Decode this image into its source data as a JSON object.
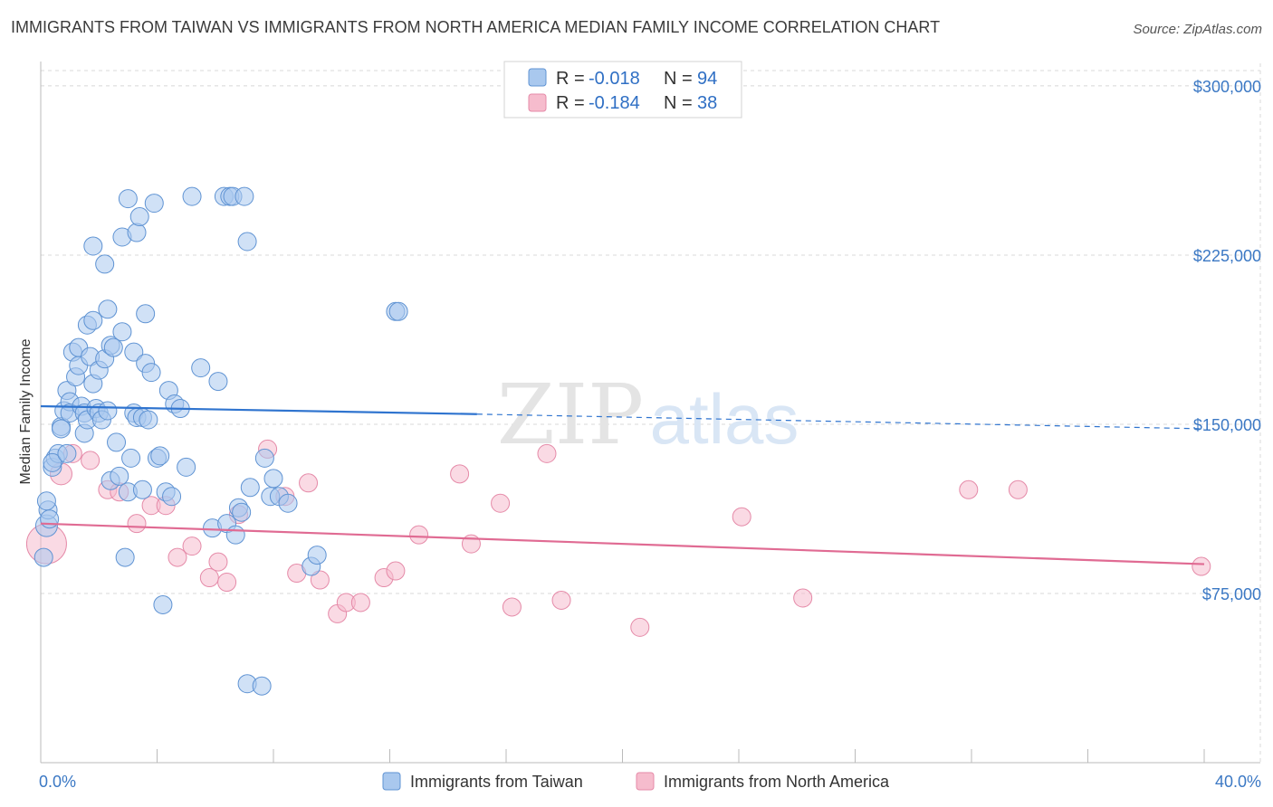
{
  "title": "IMMIGRANTS FROM TAIWAN VS IMMIGRANTS FROM NORTH AMERICA MEDIAN FAMILY INCOME CORRELATION CHART",
  "source": "Source: ZipAtlas.com",
  "watermark": {
    "zip": "ZIP",
    "atlas": "atlas"
  },
  "colors": {
    "taiwan_fill": "#a9c8ee",
    "taiwan_stroke": "#5f93d3",
    "taiwan_line": "#2f74cf",
    "na_fill": "#f6bccd",
    "na_stroke": "#e58aa8",
    "na_line": "#e06b93",
    "tick_text": "#3b78c4",
    "grid": "#d8d8d8"
  },
  "legend_top": [
    {
      "series": "taiwan",
      "r_label": "R = ",
      "r_value": "-0.018",
      "n_label": "N = ",
      "n_value": "94"
    },
    {
      "series": "na",
      "r_label": "R = ",
      "r_value": "-0.184",
      "n_label": "N = ",
      "n_value": "38"
    }
  ],
  "chart_data": {
    "type": "scatter",
    "xlabel": "",
    "ylabel": "Median Family Income",
    "xlim": [
      0,
      40
    ],
    "ylim": [
      0,
      310000
    ],
    "x_tick_labels": [
      {
        "value": 0,
        "label": "0.0%"
      },
      {
        "value": 40,
        "label": "40.0%"
      }
    ],
    "y_ticks": [
      {
        "value": 75000,
        "label": "$75,000"
      },
      {
        "value": 150000,
        "label": "$150,000"
      },
      {
        "value": 225000,
        "label": "$225,000"
      },
      {
        "value": 300000,
        "label": "$300,000"
      }
    ],
    "grid": true,
    "legend_position": "top-center",
    "series": [
      {
        "key": "taiwan",
        "name": "Immigrants from Taiwan",
        "trend": {
          "x0": 0,
          "y0": 158000,
          "x_solid_end": 15.0,
          "y_solid_end": 154500,
          "x1": 40,
          "y1": 148000
        },
        "points": [
          [
            0.1,
            91000,
            10
          ],
          [
            0.2,
            105000,
            12
          ],
          [
            0.25,
            112000,
            10
          ],
          [
            0.3,
            108000,
            10
          ],
          [
            0.2,
            116000,
            10
          ],
          [
            0.4,
            131000,
            10
          ],
          [
            0.5,
            135000,
            10
          ],
          [
            0.6,
            137000,
            10
          ],
          [
            0.7,
            149000,
            10
          ],
          [
            0.7,
            148000,
            10
          ],
          [
            0.8,
            156000,
            10
          ],
          [
            0.9,
            165000,
            10
          ],
          [
            1.0,
            160000,
            10
          ],
          [
            1.0,
            155000,
            10
          ],
          [
            1.1,
            182000,
            10
          ],
          [
            1.2,
            171000,
            10
          ],
          [
            1.3,
            176000,
            10
          ],
          [
            1.3,
            184000,
            10
          ],
          [
            1.4,
            158000,
            10
          ],
          [
            1.5,
            155000,
            10
          ],
          [
            1.5,
            146000,
            10
          ],
          [
            1.6,
            152000,
            10
          ],
          [
            1.6,
            194000,
            10
          ],
          [
            1.7,
            180000,
            10
          ],
          [
            1.8,
            196000,
            10
          ],
          [
            1.8,
            168000,
            10
          ],
          [
            1.9,
            157000,
            10
          ],
          [
            2.0,
            174000,
            10
          ],
          [
            2.0,
            155000,
            10
          ],
          [
            2.1,
            152000,
            10
          ],
          [
            2.2,
            179000,
            10
          ],
          [
            2.3,
            156000,
            10
          ],
          [
            2.3,
            201000,
            10
          ],
          [
            2.4,
            185000,
            10
          ],
          [
            2.4,
            125000,
            10
          ],
          [
            2.5,
            184000,
            10
          ],
          [
            2.6,
            142000,
            10
          ],
          [
            2.7,
            127000,
            10
          ],
          [
            2.8,
            191000,
            10
          ],
          [
            2.8,
            233000,
            10
          ],
          [
            2.9,
            91000,
            10
          ],
          [
            3.0,
            250000,
            10
          ],
          [
            3.0,
            120000,
            10
          ],
          [
            3.1,
            135000,
            10
          ],
          [
            3.2,
            182000,
            10
          ],
          [
            3.2,
            155000,
            10
          ],
          [
            3.3,
            235000,
            10
          ],
          [
            3.3,
            153000,
            10
          ],
          [
            3.4,
            242000,
            10
          ],
          [
            3.5,
            121000,
            10
          ],
          [
            3.5,
            153000,
            10
          ],
          [
            3.6,
            177000,
            10
          ],
          [
            3.6,
            199000,
            10
          ],
          [
            3.7,
            152000,
            10
          ],
          [
            3.8,
            173000,
            10
          ],
          [
            3.9,
            248000,
            10
          ],
          [
            4.0,
            135000,
            10
          ],
          [
            4.1,
            136000,
            10
          ],
          [
            4.2,
            70000,
            10
          ],
          [
            4.3,
            120000,
            10
          ],
          [
            4.4,
            165000,
            10
          ],
          [
            4.5,
            118000,
            10
          ],
          [
            4.6,
            159000,
            10
          ],
          [
            4.8,
            157000,
            10
          ],
          [
            5.0,
            131000,
            10
          ],
          [
            5.2,
            251000,
            10
          ],
          [
            5.5,
            175000,
            10
          ],
          [
            5.9,
            104000,
            10
          ],
          [
            6.1,
            169000,
            10
          ],
          [
            6.3,
            251000,
            10
          ],
          [
            6.4,
            106000,
            10
          ],
          [
            6.5,
            251000,
            10
          ],
          [
            6.6,
            251000,
            10
          ],
          [
            6.7,
            101000,
            10
          ],
          [
            6.8,
            113000,
            10
          ],
          [
            6.9,
            111000,
            10
          ],
          [
            7.0,
            251000,
            10
          ],
          [
            7.1,
            231000,
            10
          ],
          [
            7.2,
            122000,
            10
          ],
          [
            7.1,
            35000,
            10
          ],
          [
            7.6,
            34000,
            10
          ],
          [
            7.7,
            135000,
            10
          ],
          [
            8.0,
            126000,
            10
          ],
          [
            7.9,
            118000,
            10
          ],
          [
            8.2,
            118000,
            10
          ],
          [
            8.5,
            115000,
            10
          ],
          [
            9.3,
            87000,
            10
          ],
          [
            9.5,
            92000,
            10
          ],
          [
            12.2,
            200000,
            10
          ],
          [
            12.3,
            200000,
            10
          ],
          [
            1.8,
            229000,
            10
          ],
          [
            2.2,
            221000,
            10
          ],
          [
            0.4,
            133000,
            10
          ],
          [
            0.9,
            137000,
            10
          ]
        ]
      },
      {
        "key": "na",
        "name": "Immigrants from North America",
        "trend": {
          "x0": 0,
          "y0": 106000,
          "x1": 40,
          "y1": 88000
        },
        "points": [
          [
            0.2,
            97000,
            22
          ],
          [
            0.7,
            128000,
            12
          ],
          [
            1.1,
            137000,
            10
          ],
          [
            1.7,
            134000,
            10
          ],
          [
            2.3,
            121000,
            10
          ],
          [
            2.7,
            120000,
            10
          ],
          [
            3.3,
            106000,
            10
          ],
          [
            3.8,
            114000,
            10
          ],
          [
            4.3,
            114000,
            10
          ],
          [
            4.7,
            91000,
            10
          ],
          [
            5.2,
            96000,
            10
          ],
          [
            5.8,
            82000,
            10
          ],
          [
            6.1,
            89000,
            10
          ],
          [
            6.4,
            80000,
            10
          ],
          [
            6.8,
            110000,
            10
          ],
          [
            7.8,
            139000,
            10
          ],
          [
            8.4,
            118000,
            10
          ],
          [
            8.8,
            84000,
            10
          ],
          [
            9.2,
            124000,
            10
          ],
          [
            9.6,
            81000,
            10
          ],
          [
            10.2,
            66000,
            10
          ],
          [
            10.5,
            71000,
            10
          ],
          [
            11.0,
            71000,
            10
          ],
          [
            11.8,
            82000,
            10
          ],
          [
            12.2,
            85000,
            10
          ],
          [
            13.0,
            101000,
            10
          ],
          [
            14.4,
            128000,
            10
          ],
          [
            14.8,
            97000,
            10
          ],
          [
            15.8,
            115000,
            10
          ],
          [
            16.2,
            69000,
            10
          ],
          [
            17.4,
            137000,
            10
          ],
          [
            17.9,
            72000,
            10
          ],
          [
            20.6,
            60000,
            10
          ],
          [
            24.1,
            109000,
            10
          ],
          [
            26.2,
            73000,
            10
          ],
          [
            31.9,
            121000,
            10
          ],
          [
            33.6,
            121000,
            10
          ],
          [
            39.9,
            87000,
            10
          ]
        ]
      }
    ]
  }
}
